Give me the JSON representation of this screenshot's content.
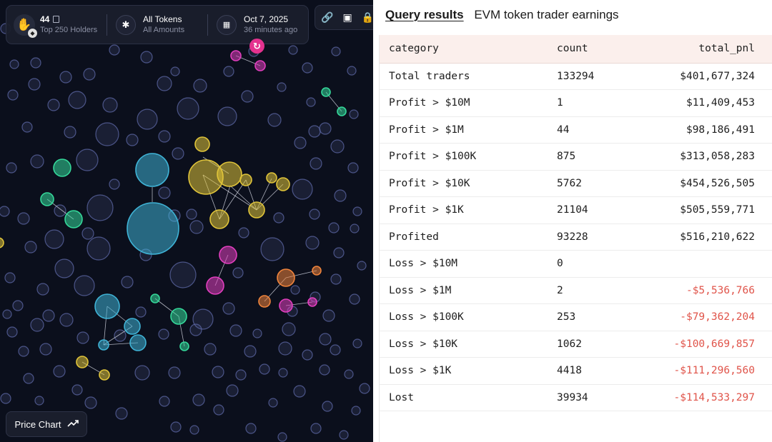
{
  "bubble_map": {
    "token": {
      "logo": "hand-sparkle-logo",
      "name": "44",
      "holders_label": "Top 250 Holders",
      "chain_icon": "bnb-chain-icon"
    },
    "filter": {
      "icon": "asterisk-icon",
      "title": "All Tokens",
      "subtitle": "All Amounts"
    },
    "date": {
      "icon": "calendar-icon",
      "title": "Oct 7, 2025",
      "subtitle": "36 minutes ago"
    },
    "toolbar_icons": [
      "link-icon",
      "save-icon",
      "lock-icon"
    ],
    "refresh_icon": "refresh-icon",
    "price_chart": {
      "label": "Price Chart",
      "icon": "trend-line-icon"
    },
    "colors": {
      "background": "#0b0f1c",
      "cyan": "#3fb3d6",
      "yellow": "#e0c43a",
      "green": "#35d89a",
      "magenta": "#e23fbf",
      "orange": "#f0843c",
      "default": "#5f6aa8"
    }
  },
  "query": {
    "title": "Query results",
    "subtitle": "EVM token trader earnings",
    "columns": [
      "category",
      "count",
      "total_pnl"
    ],
    "rows": [
      {
        "category": "Total traders",
        "count": "133294",
        "total_pnl": "$401,677,324",
        "negative": false
      },
      {
        "category": "Profit > $10M",
        "count": "1",
        "total_pnl": "$11,409,453",
        "negative": false
      },
      {
        "category": "Profit > $1M",
        "count": "44",
        "total_pnl": "$98,186,491",
        "negative": false
      },
      {
        "category": "Profit > $100K",
        "count": "875",
        "total_pnl": "$313,058,283",
        "negative": false
      },
      {
        "category": "Profit > $10K",
        "count": "5762",
        "total_pnl": "$454,526,505",
        "negative": false
      },
      {
        "category": "Profit > $1K",
        "count": "21104",
        "total_pnl": "$505,559,771",
        "negative": false
      },
      {
        "category": "Profited",
        "count": "93228",
        "total_pnl": "$516,210,622",
        "negative": false
      },
      {
        "category": "Loss > $10M",
        "count": "0",
        "total_pnl": "",
        "negative": false
      },
      {
        "category": "Loss > $1M",
        "count": "2",
        "total_pnl": "-$5,536,766",
        "negative": true
      },
      {
        "category": "Loss > $100K",
        "count": "253",
        "total_pnl": "-$79,362,204",
        "negative": true
      },
      {
        "category": "Loss > $10K",
        "count": "1062",
        "total_pnl": "-$100,669,857",
        "negative": true
      },
      {
        "category": "Loss > $1K",
        "count": "4418",
        "total_pnl": "-$111,296,560",
        "negative": true
      },
      {
        "category": "Lost",
        "count": "39934",
        "total_pnl": "-$114,533,297",
        "negative": true
      }
    ]
  }
}
